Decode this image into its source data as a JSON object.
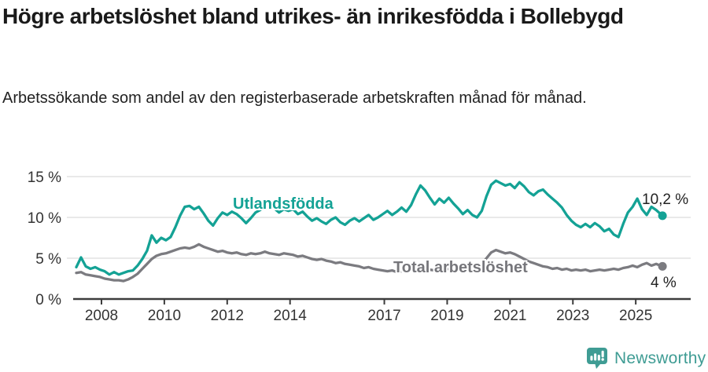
{
  "header": {
    "title": "Högre arbetslöshet bland utrikes- än inrikesfödda i Bollebygd",
    "subtitle": "Arbetssökande som andel av den registerbaserade arbetskraften månad för månad."
  },
  "footer": {
    "brand": "Newsworthy",
    "brand_color": "#3F9C94",
    "logo_icon": "bar-chart-speech-bubble"
  },
  "chart_data": {
    "type": "line",
    "title": "Högre arbetslöshet bland utrikes- än inrikesfödda i Bollebygd",
    "subtitle": "Arbetssökande som andel av den registerbaserade arbetskraften månad för månad.",
    "xlabel": "",
    "ylabel": "%",
    "ylim": [
      0,
      15.5
    ],
    "xlim": [
      2007.1,
      2025.95
    ],
    "grid": "horizontal",
    "legend": "inline-labels",
    "grid_color": "#dcdcdc",
    "axis_color": "#3c3c3c",
    "y_ticks": [
      {
        "value": 0,
        "label": "0 %"
      },
      {
        "value": 5,
        "label": "5 %"
      },
      {
        "value": 10,
        "label": "10 %"
      },
      {
        "value": 15,
        "label": "15 %"
      }
    ],
    "x_ticks": [
      {
        "value": 2008,
        "label": "2008"
      },
      {
        "value": 2010,
        "label": "2010"
      },
      {
        "value": 2012,
        "label": "2012"
      },
      {
        "value": 2014,
        "label": "2014"
      },
      {
        "value": 2017,
        "label": "2017"
      },
      {
        "value": 2019,
        "label": "2019"
      },
      {
        "value": 2021,
        "label": "2021"
      },
      {
        "value": 2023,
        "label": "2023"
      },
      {
        "value": 2025,
        "label": "2025"
      }
    ],
    "x": [
      2007.2,
      2007.35,
      2007.5,
      2007.65,
      2007.8,
      2007.95,
      2008.1,
      2008.25,
      2008.4,
      2008.55,
      2008.7,
      2008.85,
      2009.0,
      2009.15,
      2009.3,
      2009.45,
      2009.6,
      2009.75,
      2009.9,
      2010.05,
      2010.2,
      2010.35,
      2010.5,
      2010.65,
      2010.8,
      2010.95,
      2011.1,
      2011.25,
      2011.4,
      2011.55,
      2011.7,
      2011.85,
      2012.0,
      2012.15,
      2012.3,
      2012.45,
      2012.6,
      2012.75,
      2012.9,
      2013.05,
      2013.2,
      2013.35,
      2013.5,
      2013.65,
      2013.8,
      2013.95,
      2014.1,
      2014.25,
      2014.4,
      2014.55,
      2014.7,
      2014.85,
      2015.0,
      2015.15,
      2015.3,
      2015.45,
      2015.6,
      2015.75,
      2015.9,
      2016.05,
      2016.2,
      2016.35,
      2016.5,
      2016.65,
      2016.8,
      2016.95,
      2017.1,
      2017.25,
      2017.4,
      2017.55,
      2017.7,
      2017.85,
      2018.0,
      2018.15,
      2018.3,
      2018.45,
      2018.6,
      2018.75,
      2018.9,
      2019.05,
      2019.2,
      2019.35,
      2019.5,
      2019.65,
      2019.8,
      2019.95,
      2020.1,
      2020.25,
      2020.4,
      2020.55,
      2020.7,
      2020.85,
      2021.0,
      2021.15,
      2021.3,
      2021.45,
      2021.6,
      2021.75,
      2021.9,
      2022.05,
      2022.2,
      2022.35,
      2022.5,
      2022.65,
      2022.8,
      2022.95,
      2023.1,
      2023.25,
      2023.4,
      2023.55,
      2023.7,
      2023.85,
      2024.0,
      2024.15,
      2024.3,
      2024.45,
      2024.6,
      2024.75,
      2024.9,
      2025.05,
      2025.2,
      2025.35,
      2025.5,
      2025.65,
      2025.85
    ],
    "series": [
      {
        "name": "Utlandsfödda",
        "color": "#14A295",
        "end_label": "10,2 %",
        "end_value": 10.2,
        "values": [
          3.9,
          5.1,
          4.0,
          3.7,
          3.9,
          3.6,
          3.4,
          3.0,
          3.3,
          3.0,
          3.2,
          3.4,
          3.5,
          4.1,
          4.9,
          5.9,
          7.8,
          6.9,
          7.5,
          7.2,
          7.6,
          8.8,
          10.2,
          11.3,
          11.4,
          11.0,
          11.3,
          10.5,
          9.6,
          9.0,
          9.9,
          10.6,
          10.3,
          10.7,
          10.4,
          9.9,
          9.3,
          9.9,
          10.6,
          10.9,
          11.4,
          11.7,
          11.1,
          10.6,
          11.0,
          10.8,
          11.0,
          10.4,
          10.7,
          10.1,
          9.6,
          9.9,
          9.5,
          9.2,
          9.7,
          10.0,
          9.4,
          9.1,
          9.6,
          9.9,
          9.5,
          9.9,
          10.3,
          9.7,
          10.0,
          10.4,
          10.8,
          10.3,
          10.7,
          11.2,
          10.7,
          11.5,
          12.8,
          13.9,
          13.3,
          12.4,
          11.6,
          12.3,
          11.8,
          12.4,
          11.7,
          11.1,
          10.4,
          10.9,
          10.3,
          10.0,
          10.8,
          12.6,
          14.0,
          14.5,
          14.2,
          13.9,
          14.1,
          13.6,
          14.3,
          13.8,
          13.1,
          12.7,
          13.2,
          13.4,
          12.8,
          12.3,
          11.8,
          11.2,
          10.3,
          9.6,
          9.1,
          8.8,
          9.2,
          8.8,
          9.3,
          8.9,
          8.3,
          8.6,
          7.9,
          7.6,
          9.2,
          10.6,
          11.3,
          12.3,
          11.0,
          10.3,
          11.3,
          10.9,
          10.2
        ]
      },
      {
        "name": "Total arbetslöshet",
        "color": "#7B7B80",
        "end_label": "4 %",
        "end_value": 4.0,
        "values": [
          3.2,
          3.3,
          3.0,
          2.9,
          2.8,
          2.7,
          2.5,
          2.4,
          2.3,
          2.3,
          2.2,
          2.4,
          2.7,
          3.1,
          3.7,
          4.3,
          4.9,
          5.3,
          5.5,
          5.6,
          5.8,
          6.0,
          6.2,
          6.3,
          6.2,
          6.4,
          6.7,
          6.4,
          6.2,
          6.0,
          5.8,
          5.9,
          5.7,
          5.6,
          5.7,
          5.5,
          5.4,
          5.6,
          5.5,
          5.6,
          5.8,
          5.6,
          5.5,
          5.4,
          5.6,
          5.5,
          5.4,
          5.2,
          5.3,
          5.1,
          4.9,
          4.8,
          4.9,
          4.7,
          4.6,
          4.4,
          4.5,
          4.3,
          4.2,
          4.1,
          4.0,
          3.8,
          3.9,
          3.7,
          3.6,
          3.5,
          3.4,
          3.5,
          3.3,
          3.4,
          3.5,
          3.6,
          3.5,
          3.6,
          3.7,
          3.6,
          3.5,
          3.7,
          3.6,
          3.7,
          3.6,
          3.8,
          3.7,
          3.9,
          3.8,
          4.0,
          4.3,
          5.0,
          5.7,
          6.0,
          5.8,
          5.6,
          5.7,
          5.5,
          5.2,
          4.9,
          4.6,
          4.4,
          4.2,
          4.0,
          3.9,
          3.7,
          3.8,
          3.6,
          3.7,
          3.5,
          3.6,
          3.5,
          3.6,
          3.4,
          3.5,
          3.6,
          3.5,
          3.6,
          3.7,
          3.6,
          3.8,
          3.9,
          4.1,
          3.9,
          4.2,
          4.4,
          4.1,
          4.3,
          4.0
        ]
      }
    ]
  }
}
